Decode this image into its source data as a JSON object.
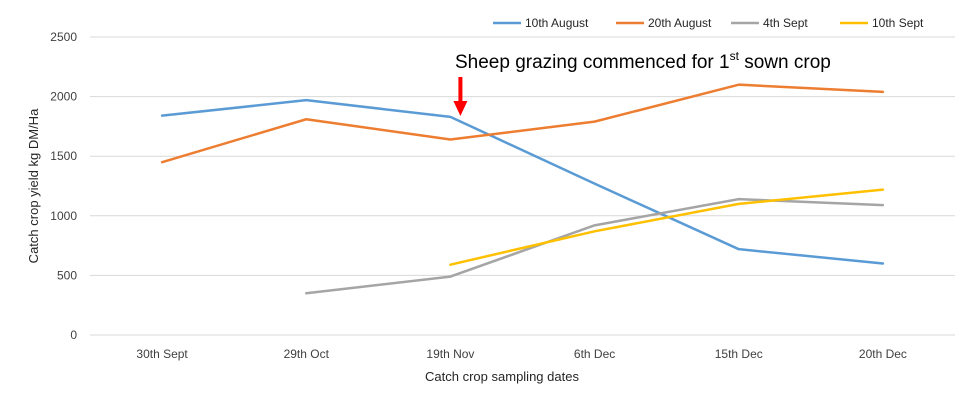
{
  "chart_data": {
    "type": "line",
    "categories": [
      "30th Sept",
      "29th Oct",
      "19th Nov",
      "6th Dec",
      "15th Dec",
      "20th Dec"
    ],
    "series": [
      {
        "name": "10th August",
        "color": "#5B9BD5",
        "values": [
          1840,
          1970,
          1830,
          1270,
          720,
          600
        ]
      },
      {
        "name": "20th August",
        "color": "#ED7D31",
        "values": [
          1450,
          1810,
          1640,
          1790,
          2100,
          2040
        ]
      },
      {
        "name": "4th Sept",
        "color": "#A5A5A5",
        "values": [
          null,
          350,
          490,
          920,
          1140,
          1090
        ]
      },
      {
        "name": "10th Sept",
        "color": "#FFC000",
        "values": [
          null,
          null,
          590,
          870,
          1100,
          1220
        ]
      }
    ],
    "xlabel": "Catch crop sampling dates",
    "ylabel": "Catch crop yield kg DM/Ha",
    "ylim": [
      0,
      2500
    ],
    "yticks": [
      0,
      500,
      1000,
      1500,
      2000,
      2500
    ],
    "grid": true,
    "legend": "top-right",
    "annotation": {
      "text": "Sheep grazing commenced for 1",
      "sup": "st",
      "text_after": " sown crop",
      "arrow_color": "#FF0000",
      "category": "19th Nov"
    }
  }
}
